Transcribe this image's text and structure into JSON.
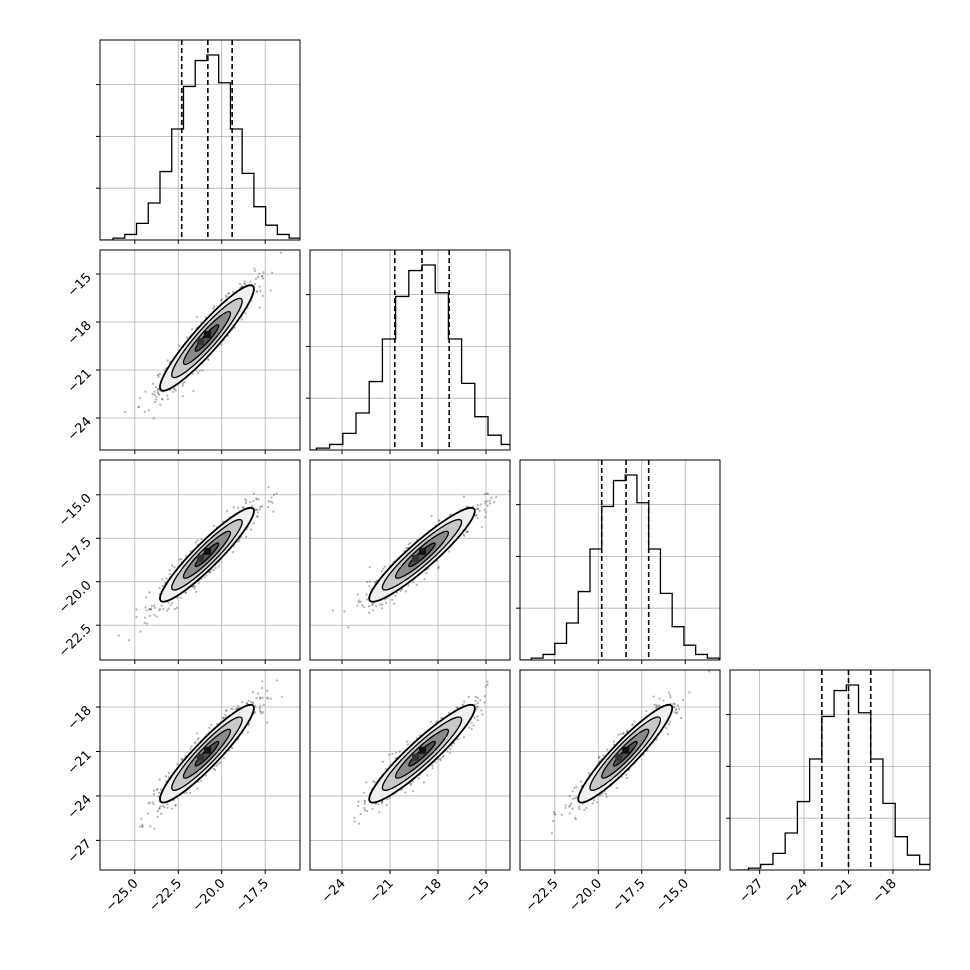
{
  "chart_data": {
    "type": "corner",
    "description_free": true,
    "grid": true,
    "parameters": [
      {
        "range": [
          -27.0,
          -15.5
        ],
        "ticks": [
          -25.0,
          -22.5,
          -20.0,
          -17.5
        ],
        "tick_labels": [
          "−25.0",
          "−22.5",
          "−20.0",
          "−17.5"
        ],
        "quantiles": [
          -22.3,
          -20.8,
          -19.4
        ],
        "mean": -20.85,
        "sd": 1.35
      },
      {
        "range": [
          -26.0,
          -13.5
        ],
        "ticks": [
          -24,
          -21,
          -18,
          -15
        ],
        "tick_labels": [
          "−24",
          "−21",
          "−18",
          "−15"
        ],
        "quantiles": [
          -20.7,
          -19.0,
          -17.3
        ],
        "mean": -19.0,
        "sd": 1.65
      },
      {
        "range": [
          -24.5,
          -13.0
        ],
        "ticks": [
          -22.5,
          -20.0,
          -17.5,
          -15.0
        ],
        "tick_labels": [
          "−22.5",
          "−20.0",
          "−17.5",
          "−15.0"
        ],
        "quantiles": [
          -19.8,
          -18.4,
          -17.1
        ],
        "mean": -18.45,
        "sd": 1.35
      },
      {
        "range": [
          -29.0,
          -15.5
        ],
        "ticks": [
          -27,
          -24,
          -21,
          -18
        ],
        "tick_labels": [
          "−27",
          "−24",
          "−21",
          "−18"
        ],
        "quantiles": [
          -22.8,
          -21.0,
          -19.5
        ],
        "mean": -21.15,
        "sd": 1.65
      }
    ],
    "correlation": 0.93,
    "histogram": {
      "bin_fractions_peak_normalized": [
        0.0,
        0.01,
        0.03,
        0.09,
        0.2,
        0.37,
        0.6,
        0.83,
        0.97,
        1.0,
        0.85,
        0.6,
        0.36,
        0.18,
        0.08,
        0.03,
        0.01,
        0.0
      ]
    },
    "contour_levels_sigma": [
      0.5,
      1.0,
      1.5,
      2.0
    ]
  }
}
